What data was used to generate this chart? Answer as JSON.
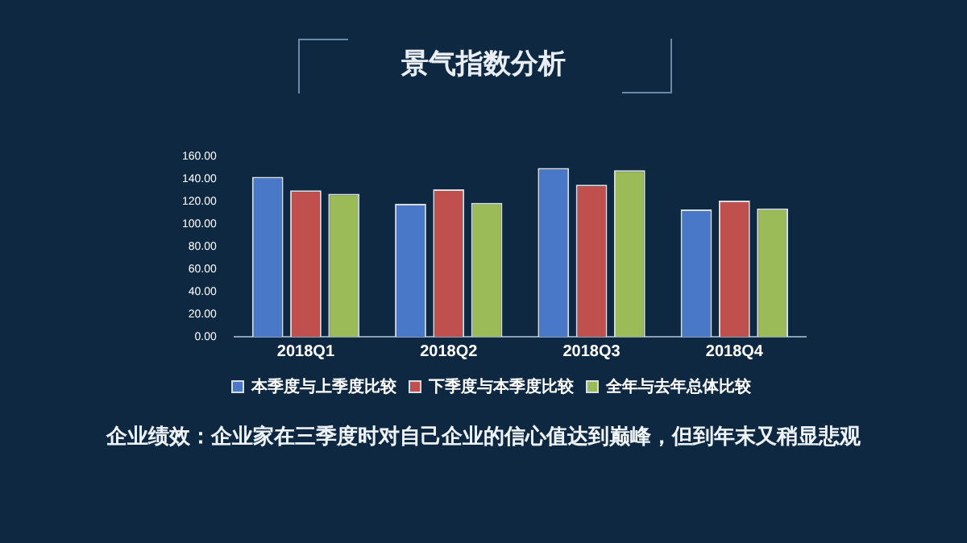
{
  "chart_data": {
    "type": "bar",
    "title": "景气指数分析",
    "categories": [
      "2018Q1",
      "2018Q2",
      "2018Q3",
      "2018Q4"
    ],
    "series": [
      {
        "name": "本季度与上季度比较",
        "color": "#4a78c8",
        "values": [
          142,
          118,
          150,
          113
        ]
      },
      {
        "name": "下季度与本季度比较",
        "color": "#c0504d",
        "values": [
          130,
          131,
          135,
          121
        ]
      },
      {
        "name": "全年与去年总体比较",
        "color": "#9bbb59",
        "values": [
          127,
          119,
          148,
          114
        ]
      }
    ],
    "ylim": [
      0,
      160
    ],
    "yticks": [
      {
        "value": 0,
        "label": "0.00"
      },
      {
        "value": 20,
        "label": "20.00"
      },
      {
        "value": 40,
        "label": "40.00"
      },
      {
        "value": 60,
        "label": "60.00"
      },
      {
        "value": 80,
        "label": "80.00"
      },
      {
        "value": 100,
        "label": "100.00"
      },
      {
        "value": 120,
        "label": "120.00"
      },
      {
        "value": 140,
        "label": "140.00"
      },
      {
        "value": 160,
        "label": "160.00"
      }
    ],
    "grid": false,
    "legend": "bottom",
    "annotations": [
      "企业绩效：企业家在三季度时对自己企业的信心值达到巅峰，但到年末又稍显悲观"
    ]
  }
}
